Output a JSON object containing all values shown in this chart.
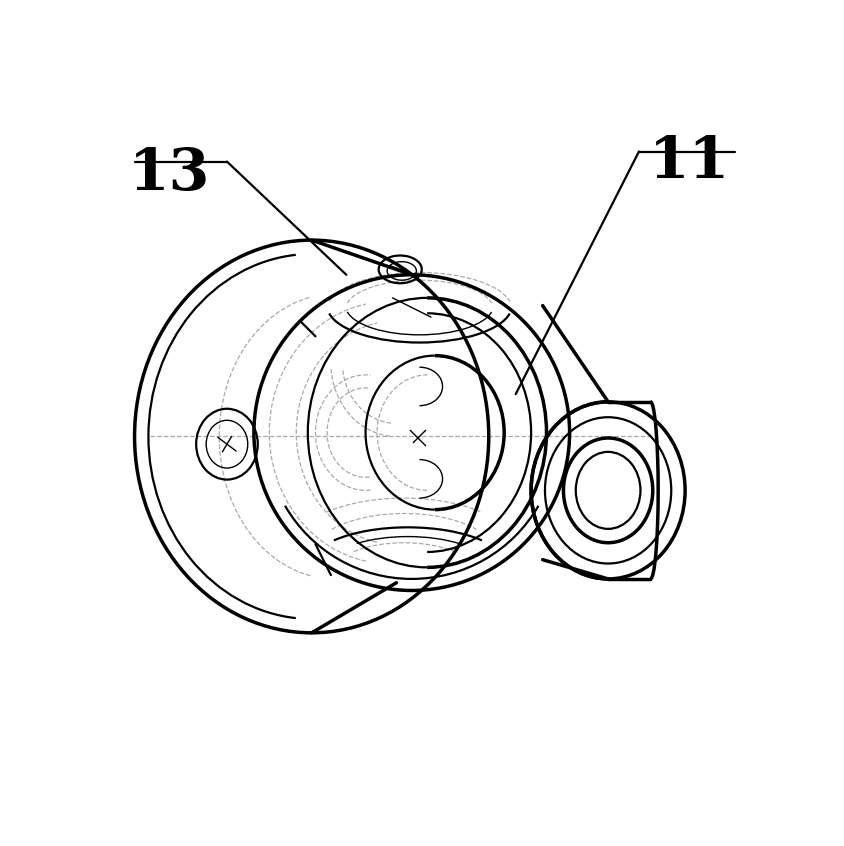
{
  "bg_color": "#ffffff",
  "line_color": "#000000",
  "dashed_color": "#aaaaaa",
  "label_13": "13",
  "label_11": "11",
  "label_fontsize": 42,
  "fig_width": 8.44,
  "fig_height": 8.46,
  "dpi": 100,
  "lw_thick": 2.5,
  "lw_med": 1.6,
  "lw_thin": 1.0,
  "lw_dash": 0.9
}
